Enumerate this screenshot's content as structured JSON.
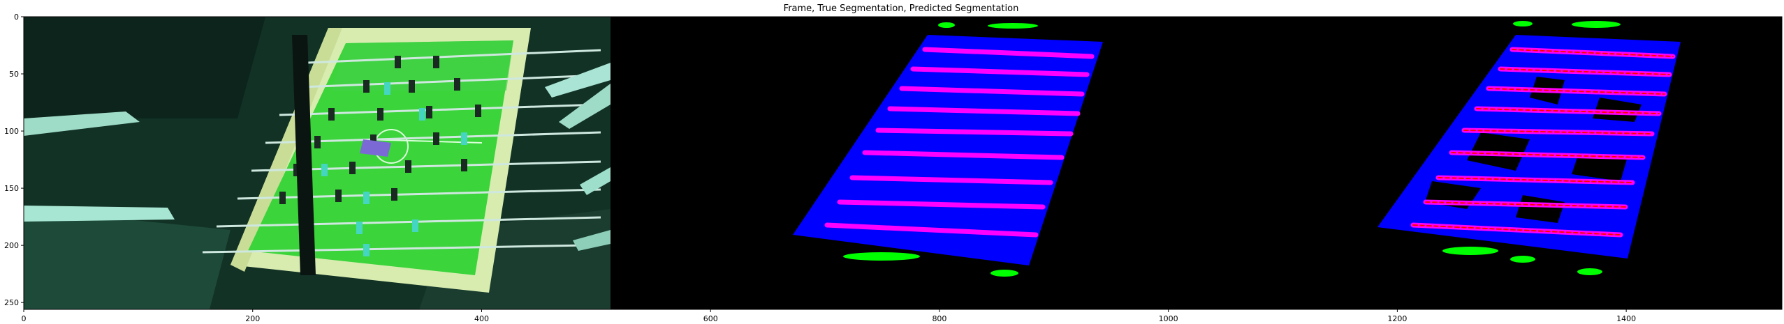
{
  "figure": {
    "title": "Frame, True Segmentation, Predicted Segmentation",
    "xlim": [
      0,
      1536
    ],
    "ylim": [
      256,
      0
    ],
    "x_ticks": [
      0,
      200,
      400,
      600,
      800,
      1000,
      1200,
      1400
    ],
    "y_ticks": [
      0,
      50,
      100,
      150,
      200,
      250
    ],
    "panels": [
      "Frame",
      "True Segmentation",
      "Predicted Segmentation"
    ],
    "colors": {
      "table_field": "#3bd43b",
      "table_body": "#e9f5c8",
      "background_scene": "#123226",
      "segmentation_background": "#000000",
      "seg_table": "#0000ff",
      "seg_rods": "#ff00ff",
      "seg_players": "#00ff00",
      "pred_rod_outline": "#ff0000"
    }
  }
}
